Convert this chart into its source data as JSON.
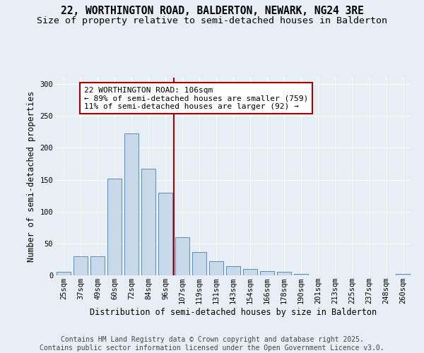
{
  "title_line1": "22, WORTHINGTON ROAD, BALDERTON, NEWARK, NG24 3RE",
  "title_line2": "Size of property relative to semi-detached houses in Balderton",
  "xlabel": "Distribution of semi-detached houses by size in Balderton",
  "ylabel": "Number of semi-detached properties",
  "categories": [
    "25sqm",
    "37sqm",
    "49sqm",
    "60sqm",
    "72sqm",
    "84sqm",
    "96sqm",
    "107sqm",
    "119sqm",
    "131sqm",
    "143sqm",
    "154sqm",
    "166sqm",
    "178sqm",
    "190sqm",
    "201sqm",
    "213sqm",
    "225sqm",
    "237sqm",
    "248sqm",
    "260sqm"
  ],
  "values": [
    6,
    30,
    30,
    152,
    223,
    167,
    130,
    60,
    36,
    22,
    14,
    10,
    7,
    5,
    2,
    0,
    0,
    0,
    0,
    0,
    2
  ],
  "bar_color": "#c8d9ea",
  "bar_edge_color": "#5b8db8",
  "vline_color": "#aa0000",
  "vline_x_index": 7,
  "annotation_text": "22 WORTHINGTON ROAD: 106sqm\n← 89% of semi-detached houses are smaller (759)\n11% of semi-detached houses are larger (92) →",
  "annotation_box_edge_color": "#aa0000",
  "annotation_box_face_color": "#ffffff",
  "ylim": [
    0,
    310
  ],
  "yticks": [
    0,
    50,
    100,
    150,
    200,
    250,
    300
  ],
  "background_color": "#e8eef5",
  "grid_color": "#ffffff",
  "title_fontsize": 10.5,
  "subtitle_fontsize": 9.5,
  "axis_label_fontsize": 8.5,
  "tick_fontsize": 7.5,
  "annotation_fontsize": 8,
  "footer_fontsize": 7,
  "footer_line1": "Contains HM Land Registry data © Crown copyright and database right 2025.",
  "footer_line2": "Contains public sector information licensed under the Open Government Licence v3.0."
}
